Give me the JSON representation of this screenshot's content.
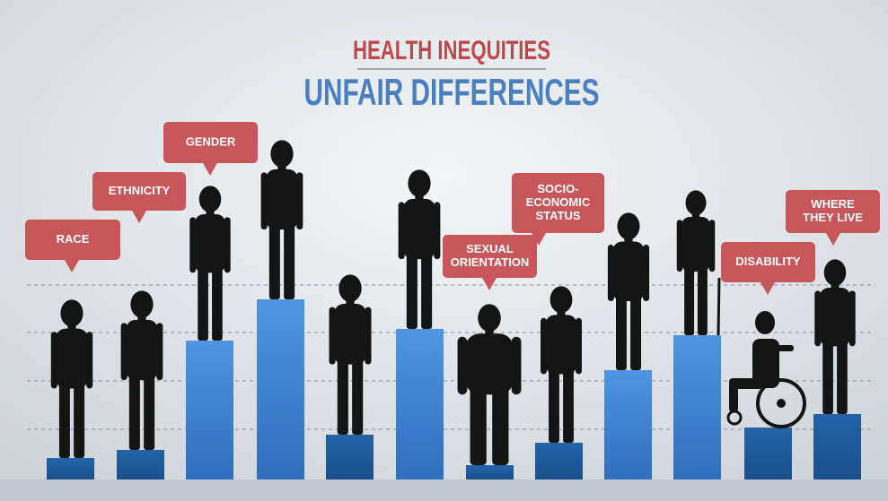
{
  "title": {
    "line1": "HEALTH INEQUITIES",
    "line2": "UNFAIR DIFFERENCES"
  },
  "labels": [
    {
      "lines": [
        "RACE"
      ]
    },
    {
      "lines": [
        "ETHNICITY"
      ]
    },
    {
      "lines": [
        "GENDER"
      ]
    },
    {
      "lines": [
        "SEXUAL",
        "ORIENTATION"
      ]
    },
    {
      "lines": [
        "SOCIO-",
        "ECONOMIC",
        "STATUS"
      ]
    },
    {
      "lines": [
        "DISABILITY"
      ]
    },
    {
      "lines": [
        "WHERE",
        "THEY LIVE"
      ]
    }
  ]
}
